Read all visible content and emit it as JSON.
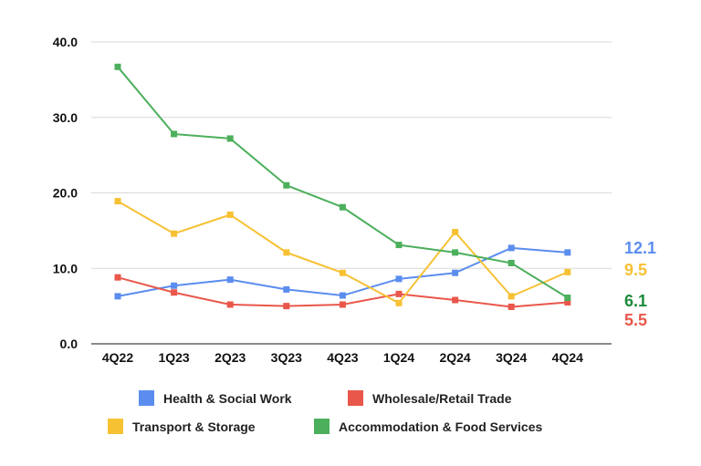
{
  "chart_data": {
    "type": "line",
    "title": "",
    "xlabel": "",
    "ylabel": "",
    "categories": [
      "4Q22",
      "1Q23",
      "2Q23",
      "3Q23",
      "4Q23",
      "1Q24",
      "2Q24",
      "3Q24",
      "4Q24"
    ],
    "ylim": [
      0,
      40
    ],
    "yticks": [
      0,
      10,
      20,
      30,
      40
    ],
    "ytick_labels": [
      "0.0",
      "10.0",
      "20.0",
      "30.0",
      "40.0"
    ],
    "grid": true,
    "legend_position": "bottom",
    "series": [
      {
        "name": "Health & Social Work",
        "color": "#5b8def",
        "values": [
          6.3,
          7.7,
          8.5,
          7.2,
          6.4,
          8.6,
          9.4,
          12.7,
          12.1
        ],
        "end_label": "12.1"
      },
      {
        "name": "Wholesale/Retail Trade",
        "color": "#e9574b",
        "values": [
          8.8,
          6.8,
          5.2,
          5.0,
          5.2,
          6.6,
          5.8,
          4.9,
          5.5
        ],
        "end_label": "5.5"
      },
      {
        "name": "Transport & Storage",
        "color": "#f7c134",
        "values": [
          18.9,
          14.6,
          17.1,
          12.1,
          9.4,
          5.4,
          14.8,
          6.3,
          9.5
        ],
        "end_label": "9.5"
      },
      {
        "name": "Accommodation & Food Services",
        "color": "#4caf5c",
        "values": [
          36.7,
          27.8,
          27.2,
          21.0,
          18.1,
          13.1,
          12.1,
          10.7,
          6.1
        ],
        "end_label": "6.1"
      }
    ],
    "end_label_colors": {
      "Health & Social Work": "#5b8def",
      "Wholesale/Retail Trade": "#e9574b",
      "Transport & Storage": "#f7c134",
      "Accommodation & Food Services": "#1d8a3a"
    }
  }
}
